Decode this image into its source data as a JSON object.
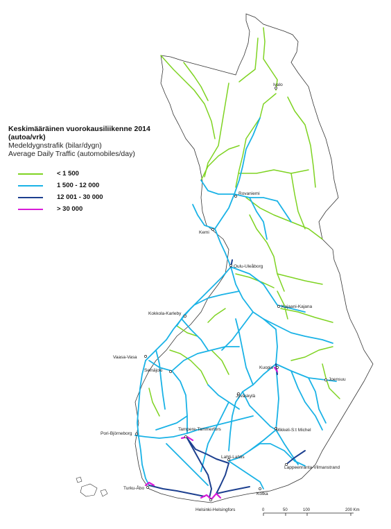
{
  "legend": {
    "title": "Keskimääräinen vuorokausiliikenne 2014 (autoa/vrk)",
    "subtitle_sv": "Medeldygnstrafik (bilar/dygn)",
    "subtitle_en": "Average Daily Traffic (automobiles/day)",
    "items": [
      {
        "label": "< 1 500",
        "color": "#7ed321"
      },
      {
        "label": "1 500 - 12 000",
        "color": "#19b2e6"
      },
      {
        "label": "12 001 - 30 000",
        "color": "#1c3f8f"
      },
      {
        "label": "> 30 000",
        "color": "#d81bd8"
      }
    ]
  },
  "cities": {
    "ivalo": "Ivalo",
    "rovaniemi": "Rovaniemi",
    "kemi": "Kemi",
    "oulu": "Oulu-Uleåborg",
    "kajaani": "Kajaani-Kajana",
    "kokkola": "Kokkola-Karleby",
    "vaasa": "Vaasa-Vasa",
    "seinajoki": "Seinäjoki",
    "kuopio": "Kuopio",
    "joensuu": "Joensuu",
    "jyvaskyla": "Jyväskylä",
    "pori": "Pori-Björneborg",
    "tampere": "Tampere-Tammerfors",
    "mikkeli": "Mikkeli-S:t Michel",
    "lahti": "Lahti-Lahtis",
    "lappeenranta": "Lappeenranta-Vilmanstrand",
    "turku": "Turku-Åbo",
    "kotka": "Kotka",
    "helsinki": "Helsinki-Helsingfors"
  },
  "scale": {
    "labels": [
      "0",
      "50",
      "100",
      "200 Km"
    ]
  }
}
